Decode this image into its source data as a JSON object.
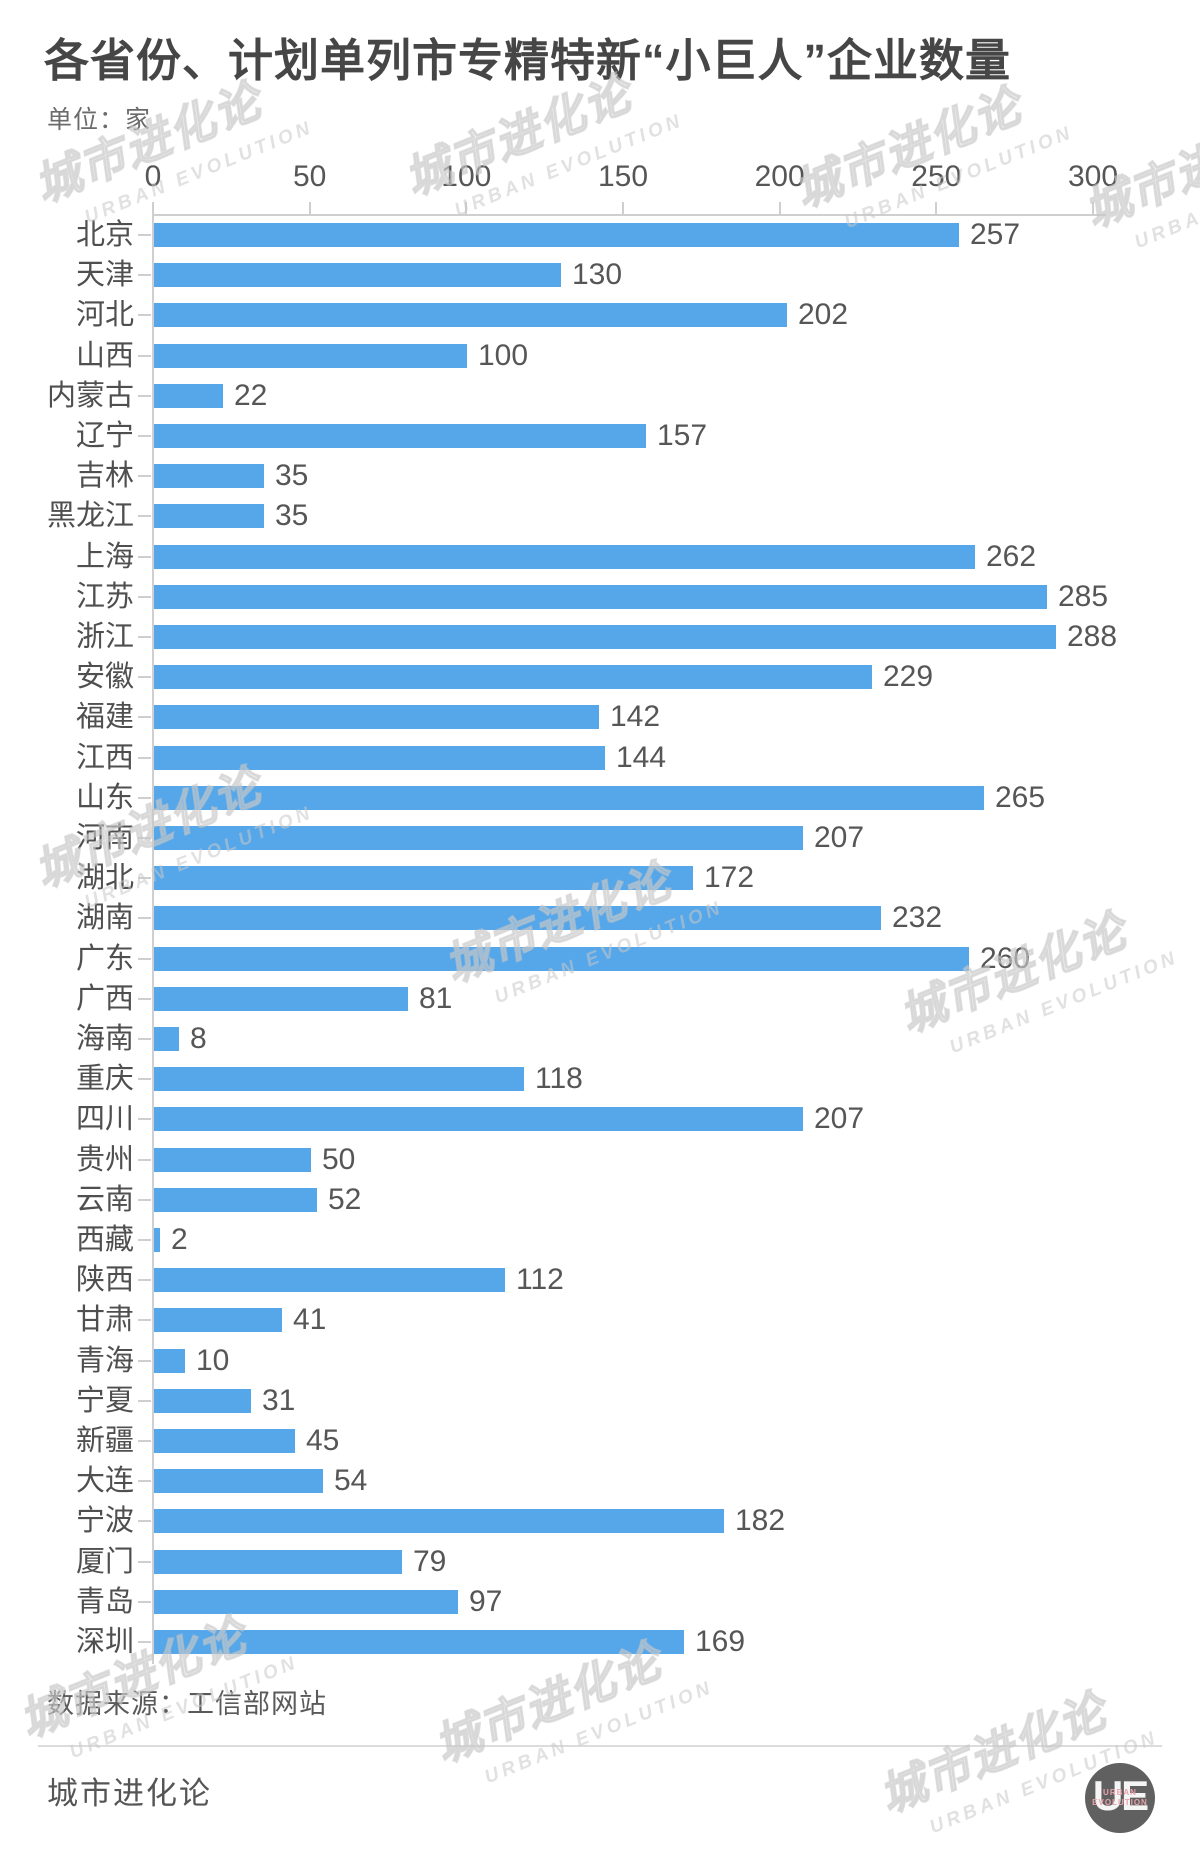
{
  "page": {
    "title": "各省份、计划单列市专精特新“小巨人”企业数量",
    "unit_label": "单位：家",
    "source_label": "数据来源：工信部网站",
    "brand": "城市进化论"
  },
  "watermark": {
    "line1": "城市进化论",
    "line2": "URBAN EVOLUTION"
  },
  "logo": {
    "monogram": "UE",
    "line1": "URBAN",
    "line2": "EVOLUTION"
  },
  "colors": {
    "bar": "#56a7e9",
    "axis_line": "#cfcfcf",
    "tick_text": "#565656",
    "category_text": "#4f4f4f",
    "value_text": "#565656",
    "title_text": "#464646",
    "watermark": "#d2d2d2",
    "logo_bg": "#606060",
    "logo_accent": "#e8a2ac"
  },
  "chart_data": {
    "type": "bar",
    "orientation": "horizontal",
    "title": "各省份、计划单列市专精特新“小巨人”企业数量",
    "unit": "家",
    "xlabel": "",
    "ylabel": "",
    "xlim": [
      0,
      300
    ],
    "x_ticks": [
      0,
      50,
      100,
      150,
      200,
      250,
      300
    ],
    "grid": false,
    "value_labels": true,
    "source": "工信部网站",
    "categories": [
      "北京",
      "天津",
      "河北",
      "山西",
      "内蒙古",
      "辽宁",
      "吉林",
      "黑龙江",
      "上海",
      "江苏",
      "浙江",
      "安徽",
      "福建",
      "江西",
      "山东",
      "河南",
      "湖北",
      "湖南",
      "广东",
      "广西",
      "海南",
      "重庆",
      "四川",
      "贵州",
      "云南",
      "西藏",
      "陕西",
      "甘肃",
      "青海",
      "宁夏",
      "新疆",
      "大连",
      "宁波",
      "厦门",
      "青岛",
      "深圳"
    ],
    "values": [
      257,
      130,
      202,
      100,
      22,
      157,
      35,
      35,
      262,
      285,
      288,
      229,
      142,
      144,
      265,
      207,
      172,
      232,
      260,
      81,
      8,
      118,
      207,
      50,
      52,
      2,
      112,
      41,
      10,
      31,
      45,
      54,
      182,
      79,
      97,
      169
    ]
  }
}
